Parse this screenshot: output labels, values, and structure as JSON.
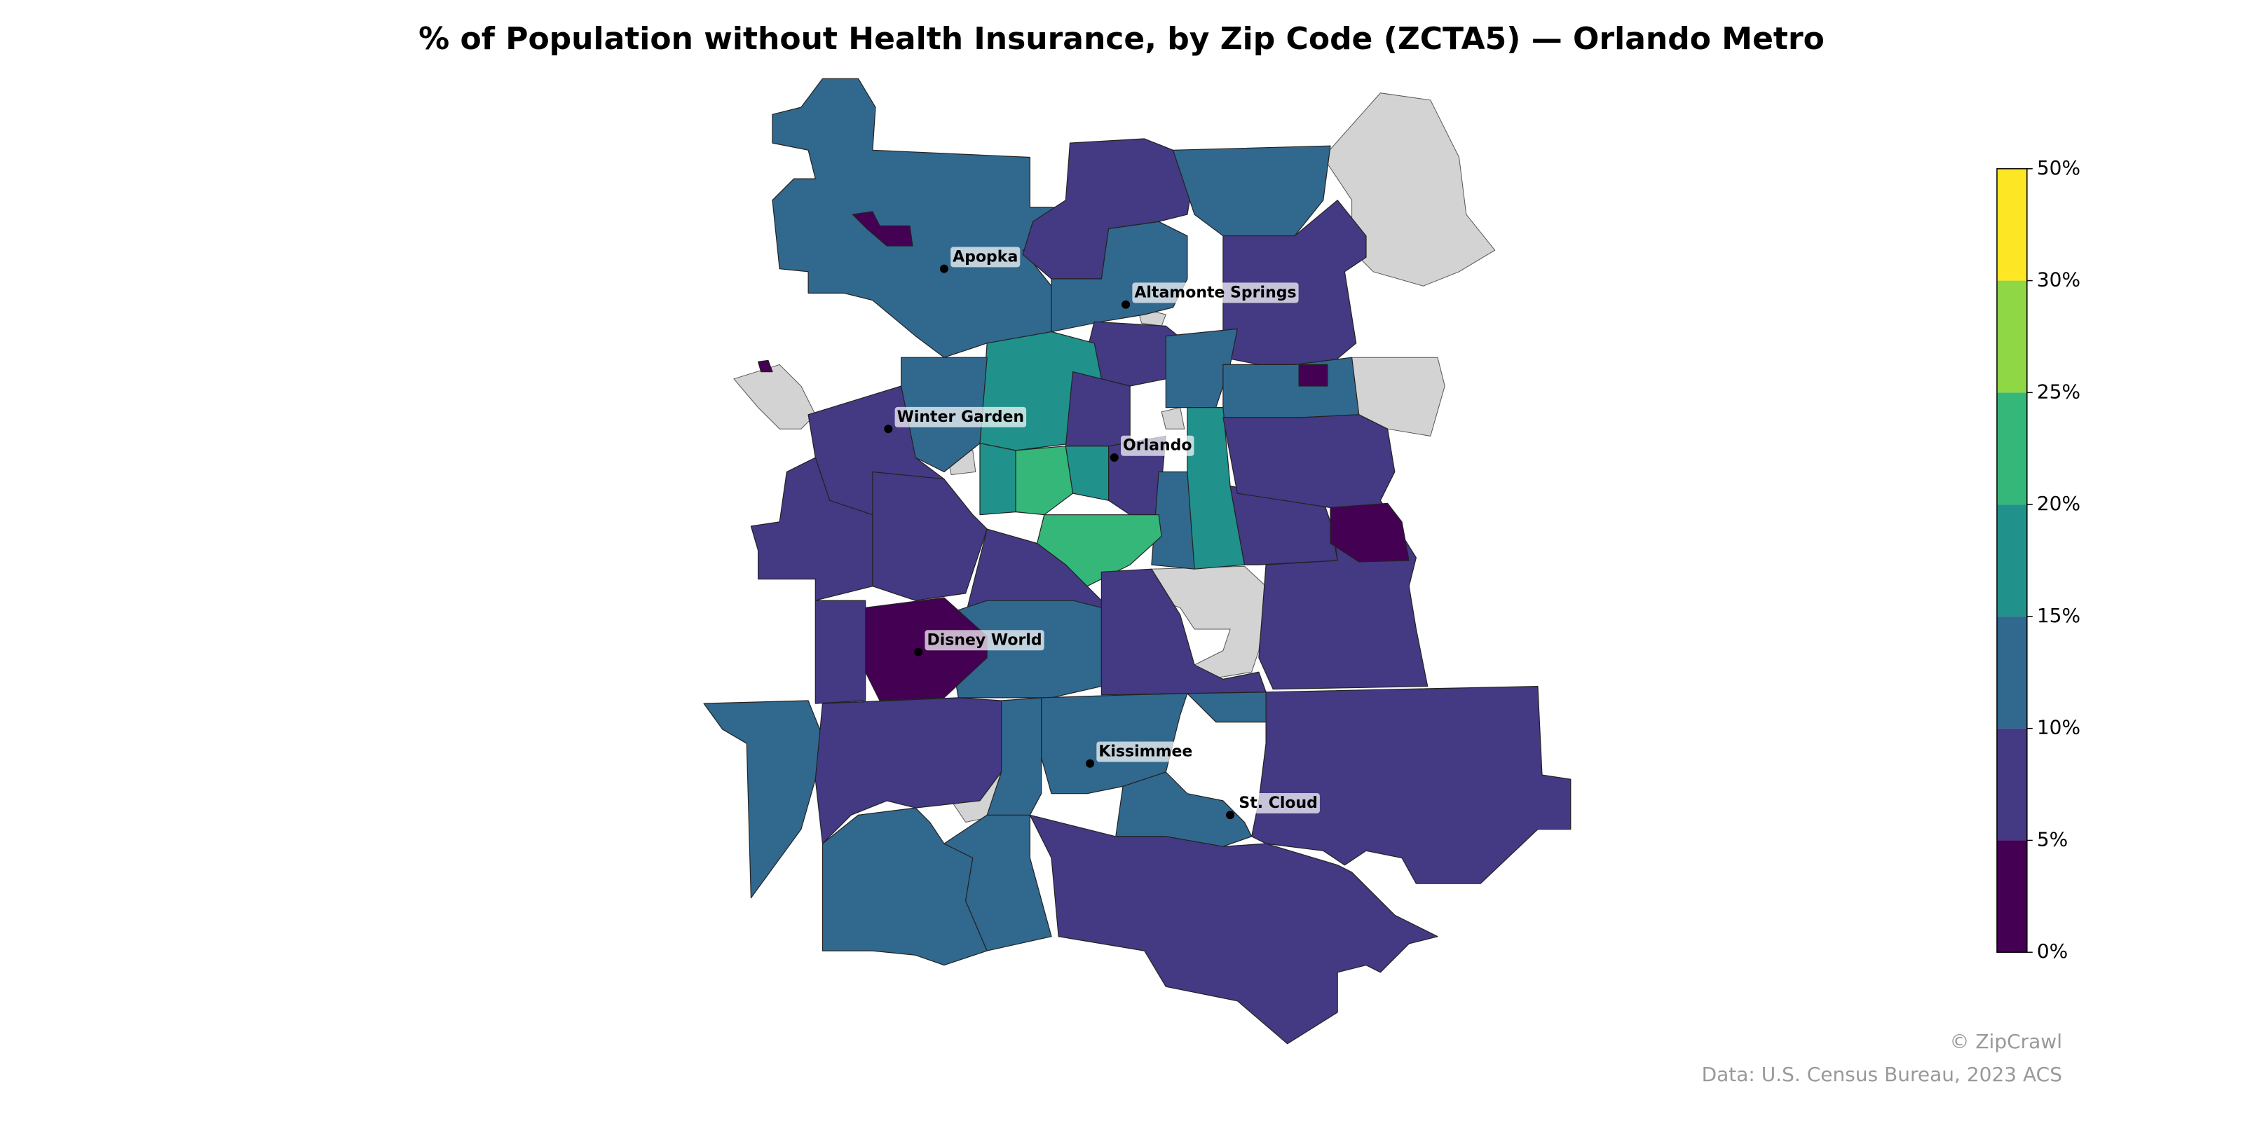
{
  "chart_data": {
    "type": "choropleth",
    "title": "% of Population without Health Insurance, by Zip Code (ZCTA5) — Orlando Metro",
    "regions": {
      "values": [
        12,
        3,
        7,
        12,
        7,
        12,
        7,
        12,
        12,
        3,
        17,
        12,
        7,
        7,
        7,
        22,
        17,
        17,
        7,
        7,
        17,
        12,
        22,
        7,
        7,
        3,
        7,
        12,
        3,
        7,
        7,
        12,
        7,
        12,
        12,
        12,
        12,
        12,
        12,
        7,
        7,
        3
      ]
    },
    "colorbar": {
      "ticks": [
        {
          "value": 0,
          "label": "0%"
        },
        {
          "value": 5,
          "label": "5%"
        },
        {
          "value": 10,
          "label": "10%"
        },
        {
          "value": 15,
          "label": "15%"
        },
        {
          "value": 20,
          "label": "20%"
        },
        {
          "value": 25,
          "label": "25%"
        },
        {
          "value": 30,
          "label": "30%"
        },
        {
          "value": 50,
          "label": "50%"
        }
      ],
      "colors": [
        "#440154",
        "#443983",
        "#31688e",
        "#21918c",
        "#35b779",
        "#8fd744",
        "#fde725"
      ]
    },
    "cities": [
      "Apopka",
      "Altamonte Springs",
      "Winter Garden",
      "Orlando",
      "Disney World",
      "Kissimmee",
      "St. Cloud"
    ],
    "footer": {
      "credit": "© ZipCrawl",
      "source": "Data: U.S. Census Bureau, 2023 ACS"
    }
  }
}
